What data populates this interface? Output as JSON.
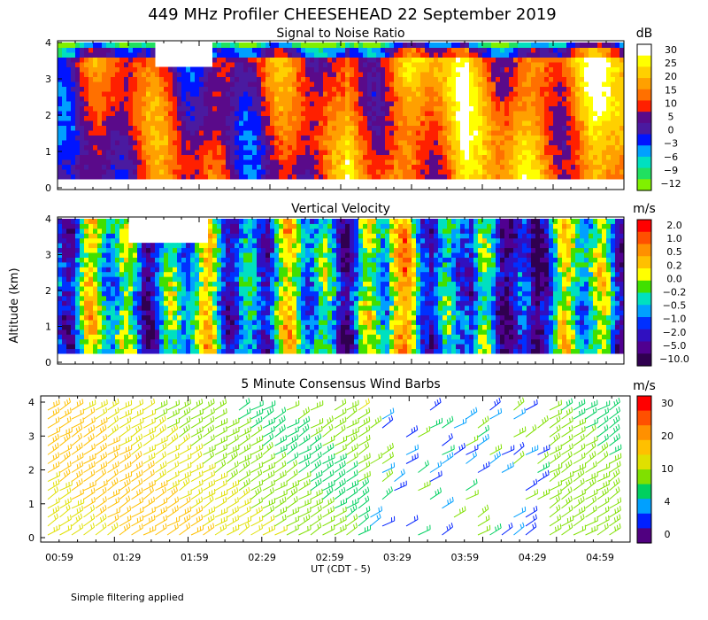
{
  "header": {
    "title": "449 MHz Profiler CHEESEHEAD 22 September 2019"
  },
  "axes": {
    "ylabel": "Altitude (km)",
    "xlabel": "UT (CDT - 5)",
    "yticks": [
      "0",
      "1",
      "2",
      "3",
      "4"
    ],
    "xticks": [
      "00:59",
      "01:29",
      "01:59",
      "02:29",
      "02:59",
      "03:29",
      "03:59",
      "04:29",
      "04:59"
    ]
  },
  "footer": {
    "note": "Simple filtering applied"
  },
  "chart_data": [
    {
      "type": "heatmap",
      "title": "Signal to Noise Ratio",
      "x_range": [
        "00:59",
        "04:59"
      ],
      "ylim": [
        0,
        4
      ],
      "colorbar": {
        "unit": "dB",
        "labels": [
          "30",
          "25",
          "20",
          "15",
          "10",
          "5",
          "0",
          "−3",
          "−6",
          "−9",
          "−12"
        ],
        "colors": [
          "#ffffff",
          "#ffff00",
          "#ffd000",
          "#ffa000",
          "#ff7000",
          "#ff2000",
          "#5a0a8a",
          "#4a1aa0",
          "#0014ff",
          "#00a0ff",
          "#00e0c0",
          "#20e060",
          "#80f000"
        ]
      }
    },
    {
      "type": "heatmap",
      "title": "Vertical Velocity",
      "x_range": [
        "00:59",
        "04:59"
      ],
      "ylim": [
        0,
        4
      ],
      "colorbar": {
        "unit": "m/s",
        "labels": [
          "2.0",
          "1.0",
          "0.5",
          "0.2",
          "0.0",
          "−0.2",
          "−0.5",
          "−1.0",
          "−2.0",
          "−5.0",
          "−10.0"
        ],
        "colors": [
          "#ff0000",
          "#ff5000",
          "#ff9000",
          "#ffc000",
          "#ffff00",
          "#40e000",
          "#00e0c0",
          "#00a0ff",
          "#0030ff",
          "#3010c0",
          "#500090",
          "#300050"
        ]
      }
    },
    {
      "type": "wind_barbs",
      "title": "5 Minute Consensus Wind Barbs",
      "x_range": [
        "00:59",
        "04:59"
      ],
      "ylim": [
        0,
        4
      ],
      "colorbar": {
        "unit": "m/s",
        "labels": [
          "30",
          "20",
          "10",
          "4",
          "0"
        ],
        "colors": [
          "#ff0000",
          "#ff5000",
          "#ff9000",
          "#ffc000",
          "#e0e000",
          "#80e000",
          "#00d060",
          "#00a0ff",
          "#0020ff",
          "#500080"
        ]
      }
    }
  ]
}
